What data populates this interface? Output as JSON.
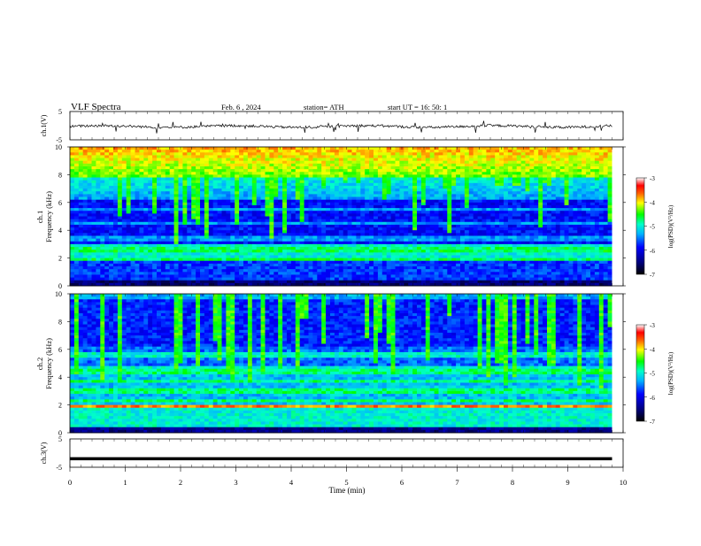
{
  "header": {
    "title": "VLF  Spectra",
    "date": "Feb. 6  , 2024",
    "station": "station= ATH",
    "start": "start  UT  =   16: 50: 1"
  },
  "chart_data": [
    {
      "type": "line",
      "ylabel": "ch.1(V)",
      "ylim": [
        -5,
        5
      ],
      "yticks": [
        "5",
        "-5"
      ],
      "x": [
        0,
        9.8
      ],
      "description_level": -0.3,
      "series": [
        {
          "values": [
            -0.3,
            -0.3
          ]
        }
      ]
    },
    {
      "type": "heatmap",
      "ylabel": [
        "ch.1",
        "Frequency  (kHz)"
      ],
      "ylim": [
        0,
        10
      ],
      "yticks": [
        "0",
        "2",
        "4",
        "6",
        "8",
        "10"
      ],
      "colorbar": {
        "label": "log(PSD)(V²/Hz)",
        "range": [
          -7,
          -3
        ],
        "ticks": [
          "-3",
          "-4",
          "-5",
          "-6",
          "-7"
        ]
      }
    },
    {
      "type": "heatmap",
      "ylabel": [
        "ch.2",
        "Frequency  (kHz)"
      ],
      "ylim": [
        0,
        10
      ],
      "yticks": [
        "0",
        "2",
        "4",
        "6",
        "8",
        "10"
      ],
      "colorbar": {
        "label": "log(PSD)(V²/Hz)",
        "range": [
          -7,
          -3
        ],
        "ticks": [
          "-3",
          "-4",
          "-5",
          "-6",
          "-7"
        ]
      }
    },
    {
      "type": "line",
      "ylabel": "ch.3(V)",
      "ylim": [
        -5,
        5
      ],
      "yticks": [
        "5",
        "-5"
      ],
      "x": [
        0,
        9.8
      ],
      "series": [
        {
          "values": [
            -2,
            -2
          ]
        }
      ]
    }
  ],
  "xaxis": {
    "label": "Time  (min)",
    "range": [
      0,
      10
    ],
    "ticks": [
      "0",
      "1",
      "2",
      "3",
      "4",
      "5",
      "6",
      "7",
      "8",
      "9",
      "10"
    ]
  }
}
